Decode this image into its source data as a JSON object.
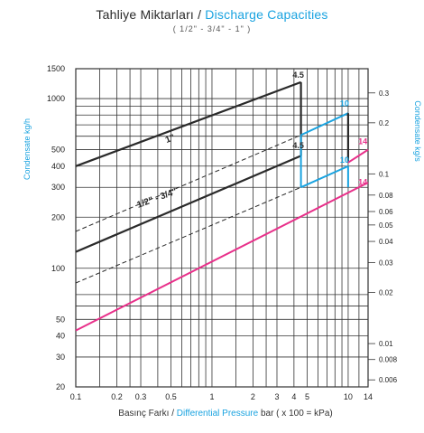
{
  "header": {
    "title_tr": "Tahliye Miktarları / ",
    "title_en": "Discharge Capacities",
    "subtitle": "( 1/2\" - 3/4\" - 1\" )"
  },
  "colors": {
    "black": "#2a2a2a",
    "blue": "#1aa3e0",
    "magenta": "#e8308a",
    "grid": "#333333"
  },
  "chart_data": {
    "type": "line",
    "x_scale": "log",
    "y_scale": "log",
    "xlabel_tr": "Basınç Farkı / ",
    "xlabel_en": "Differential Pressure",
    "xlabel_unit": " bar ( x 100 = kPa)",
    "ylabel_left": "Condensate kg/h",
    "ylabel_right": "Condensate kg/s",
    "xlim": [
      0.1,
      14
    ],
    "ylim": [
      20,
      1500
    ],
    "x_ticks": [
      {
        "v": 0.1,
        "label": "0.1"
      },
      {
        "v": 0.2,
        "label": "0.2"
      },
      {
        "v": 0.3,
        "label": "0.3"
      },
      {
        "v": 0.5,
        "label": "0.5"
      },
      {
        "v": 1,
        "label": "1"
      },
      {
        "v": 2,
        "label": "2"
      },
      {
        "v": 3,
        "label": "3"
      },
      {
        "v": 4,
        "label": "4"
      },
      {
        "v": 5,
        "label": "5"
      },
      {
        "v": 10,
        "label": "10"
      },
      {
        "v": 14,
        "label": "14"
      }
    ],
    "x_grid": [
      0.1,
      0.15,
      0.2,
      0.25,
      0.3,
      0.4,
      0.5,
      0.6,
      0.7,
      0.8,
      0.9,
      1,
      1.5,
      2,
      2.5,
      3,
      4,
      5,
      6,
      7,
      8,
      9,
      10,
      12,
      14
    ],
    "y_ticks": [
      {
        "v": 20,
        "label": "20"
      },
      {
        "v": 30,
        "label": "30"
      },
      {
        "v": 40,
        "label": "40"
      },
      {
        "v": 50,
        "label": "50"
      },
      {
        "v": 100,
        "label": "100"
      },
      {
        "v": 200,
        "label": "200"
      },
      {
        "v": 300,
        "label": "300"
      },
      {
        "v": 400,
        "label": "400"
      },
      {
        "v": 500,
        "label": "500"
      },
      {
        "v": 1000,
        "label": "1000"
      },
      {
        "v": 1500,
        "label": "1500"
      }
    ],
    "y_grid": [
      20,
      30,
      40,
      50,
      60,
      70,
      100,
      200,
      300,
      400,
      500,
      600,
      700,
      800,
      900,
      1000,
      1500
    ],
    "right_ticks": [
      {
        "v": 1080,
        "label": "0.3"
      },
      {
        "v": 720,
        "label": "0.2"
      },
      {
        "v": 360,
        "label": "0.1"
      },
      {
        "v": 270,
        "label": "0.08"
      },
      {
        "v": 216,
        "label": "0.06"
      },
      {
        "v": 180,
        "label": "0.05"
      },
      {
        "v": 144,
        "label": "0.04"
      },
      {
        "v": 108,
        "label": "0.03"
      },
      {
        "v": 72,
        "label": "0.02"
      },
      {
        "v": 36,
        "label": "0.01"
      },
      {
        "v": 29,
        "label": "0.008"
      },
      {
        "v": 22,
        "label": "0.006"
      }
    ],
    "series": [
      {
        "name": "1\"",
        "color": "black",
        "width": 2.2,
        "dash": "",
        "x": [
          0.1,
          4.5
        ],
        "y": [
          400,
          1250
        ]
      },
      {
        "name": "",
        "color": "black",
        "width": 2.2,
        "dash": "",
        "x": [
          4.5,
          4.5
        ],
        "y": [
          1250,
          460
        ]
      },
      {
        "name": "1/2\" - 3/4\"",
        "color": "black",
        "width": 2.2,
        "dash": "",
        "x": [
          0.1,
          4.5
        ],
        "y": [
          125,
          460
        ]
      },
      {
        "name": "",
        "color": "black",
        "width": 1.0,
        "dash": "5,3",
        "x": [
          0.1,
          4.5
        ],
        "y": [
          165,
          610
        ]
      },
      {
        "name": "",
        "color": "black",
        "width": 1.0,
        "dash": "5,3",
        "x": [
          0.1,
          4.5
        ],
        "y": [
          82,
          300
        ]
      },
      {
        "name": "",
        "color": "blue",
        "width": 2.0,
        "dash": "",
        "x": [
          4.5,
          10
        ],
        "y": [
          610,
          820
        ]
      },
      {
        "name": "",
        "color": "blue",
        "width": 2.0,
        "dash": "",
        "x": [
          4.5,
          4.5
        ],
        "y": [
          610,
          300
        ]
      },
      {
        "name": "",
        "color": "blue",
        "width": 2.0,
        "dash": "",
        "x": [
          4.5,
          10
        ],
        "y": [
          300,
          400
        ]
      },
      {
        "name": "",
        "color": "blue",
        "width": 2.0,
        "dash": "",
        "x": [
          10,
          10
        ],
        "y": [
          400,
          300
        ]
      },
      {
        "name": "",
        "color": "black",
        "width": 2.2,
        "dash": "",
        "x": [
          10,
          10
        ],
        "y": [
          820,
          420
        ]
      },
      {
        "name": "",
        "color": "magenta",
        "width": 2.0,
        "dash": "",
        "x": [
          10,
          14
        ],
        "y": [
          420,
          500
        ]
      },
      {
        "name": "",
        "color": "magenta",
        "width": 2.0,
        "dash": "",
        "x": [
          0.1,
          14
        ],
        "y": [
          43,
          320
        ]
      }
    ],
    "annotations": [
      {
        "text": "4.5",
        "x": 4.3,
        "y": 1330,
        "color": "black"
      },
      {
        "text": "4.5",
        "x": 4.3,
        "y": 510,
        "color": "black"
      },
      {
        "text": "10",
        "x": 9.4,
        "y": 900,
        "color": "blue"
      },
      {
        "text": "10",
        "x": 9.4,
        "y": 420,
        "color": "blue"
      },
      {
        "text": "14",
        "x": 12.8,
        "y": 540,
        "color": "magenta"
      },
      {
        "text": "14",
        "x": 12.8,
        "y": 310,
        "color": "magenta"
      },
      {
        "text": "1\"",
        "x": 0.5,
        "y": 560,
        "color": "black"
      },
      {
        "text": "1/2\" - 3/4\"",
        "x": 0.4,
        "y": 250,
        "color": "black"
      }
    ]
  }
}
